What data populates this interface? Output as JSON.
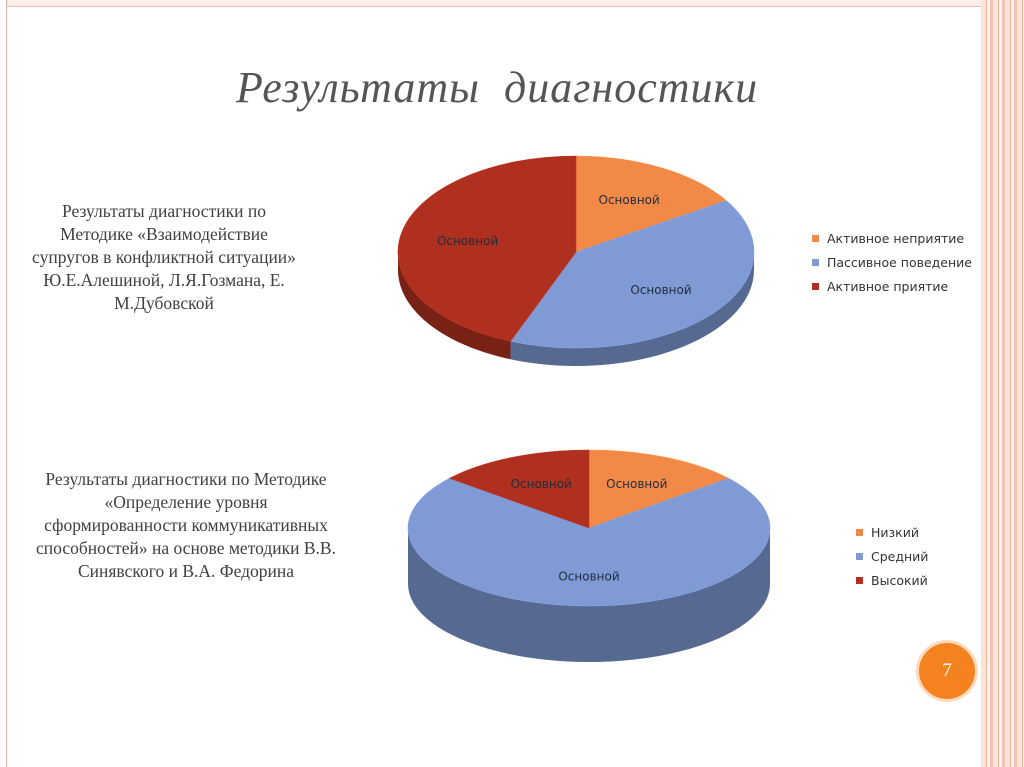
{
  "slide": {
    "title": "Результаты  диагностики",
    "page_number": "7",
    "accent_color": "#f4821f"
  },
  "chart_data": [
    {
      "type": "pie",
      "description": "Результаты диагностики по Методике «Взаимодействие супругов в конфликтной ситуации» Ю.Е.Алешиной, Л.Я.Гозмана, Е. М.Дубовской",
      "slices": [
        {
          "name": "Активное неприятие",
          "value": 16,
          "color": "#f28946",
          "data_label": "Основной"
        },
        {
          "name": "Пассивное поведение",
          "value": 40,
          "color": "#7f9ad5",
          "data_label": "Основной"
        },
        {
          "name": "Активное приятие",
          "value": 44,
          "color": "#b0301f",
          "data_label": "Основной"
        }
      ],
      "legend_placement": "right"
    },
    {
      "type": "pie",
      "description": "Результаты диагностики по Методике «Определение уровня сформированности коммуникативных способностей» на основе методики В.В. Синявского и В.А. Федорина",
      "slices": [
        {
          "name": "Низкий",
          "value": 14,
          "color": "#f28946",
          "data_label": "Основной"
        },
        {
          "name": "Средний",
          "value": 72,
          "color": "#7f9ad5",
          "data_label": "Основной"
        },
        {
          "name": "Высокий",
          "value": 14,
          "color": "#b0301f",
          "data_label": "Основной"
        }
      ],
      "legend_placement": "right"
    }
  ]
}
